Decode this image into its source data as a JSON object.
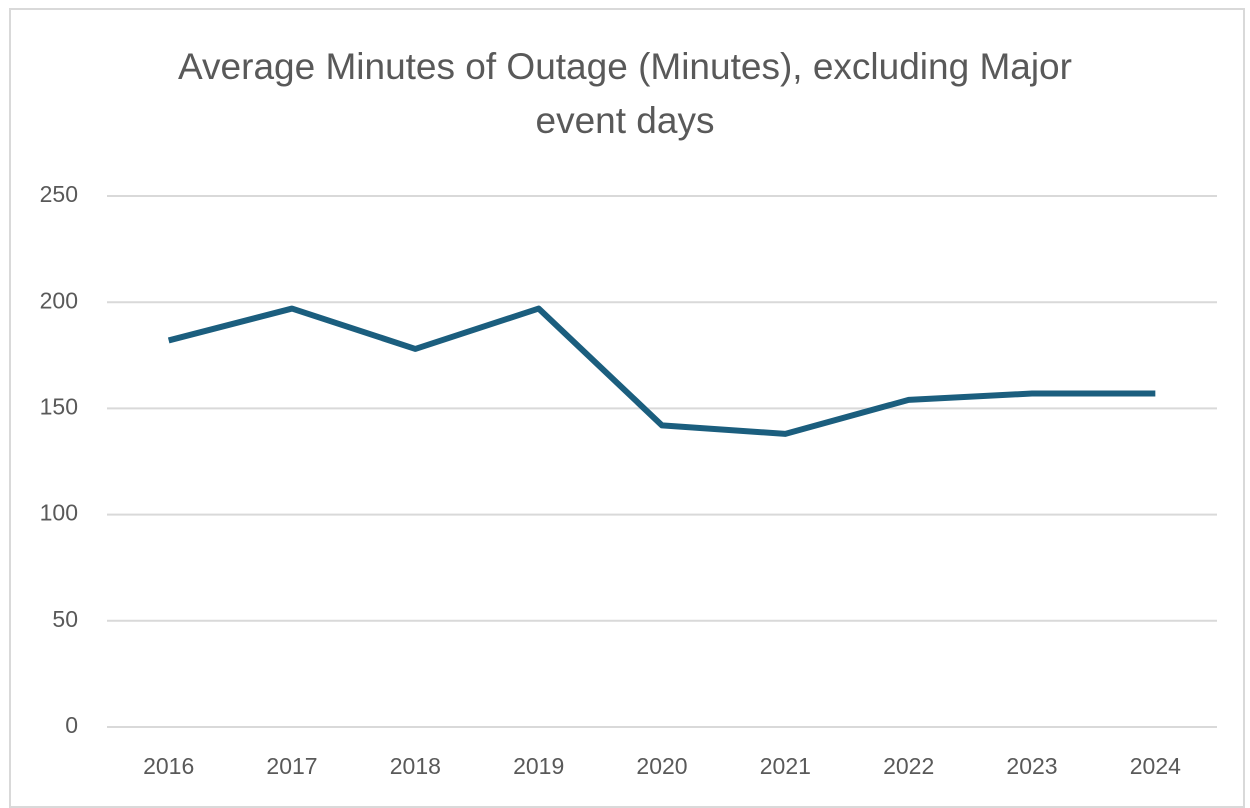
{
  "chart_data": {
    "type": "line",
    "title": "Average Minutes of Outage (Minutes), excluding Major event days",
    "categories": [
      "2016",
      "2017",
      "2018",
      "2019",
      "2020",
      "2021",
      "2022",
      "2023",
      "2024"
    ],
    "values": [
      182,
      197,
      178,
      197,
      142,
      138,
      154,
      157,
      157
    ],
    "color": "#1b5e7e",
    "ylim": [
      0,
      250
    ],
    "yticks": [
      0,
      50,
      100,
      150,
      200,
      250
    ],
    "grid": true
  }
}
